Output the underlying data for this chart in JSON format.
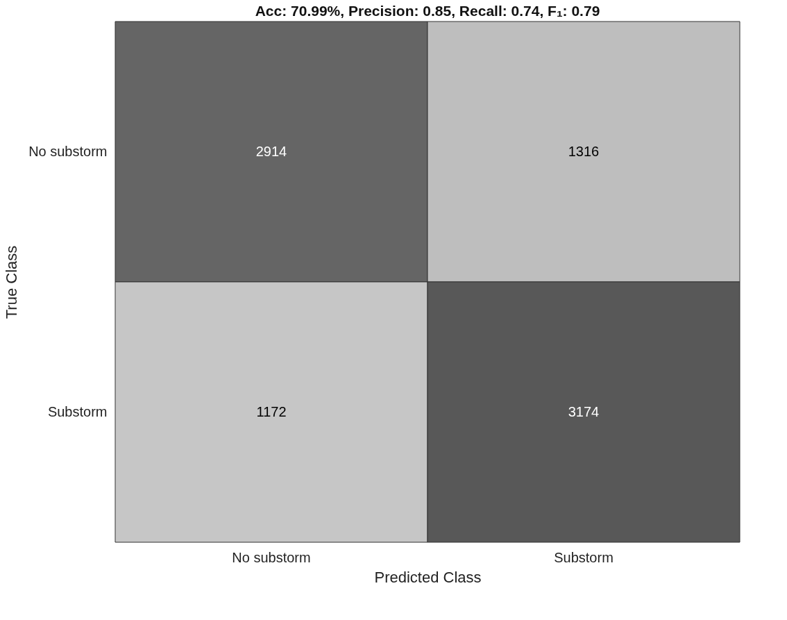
{
  "chart_data": {
    "type": "heatmap",
    "title": "Acc: 70.99%, Precision: 0.85, Recall: 0.74, F₁: 0.79",
    "xlabel": "Predicted Class",
    "ylabel": "True Class",
    "categories": [
      "No substorm",
      "Substorm"
    ],
    "y_categories": [
      "No substorm",
      "Substorm"
    ],
    "cells": [
      [
        2914,
        1316
      ],
      [
        1172,
        3174
      ]
    ],
    "data_labels": true
  }
}
